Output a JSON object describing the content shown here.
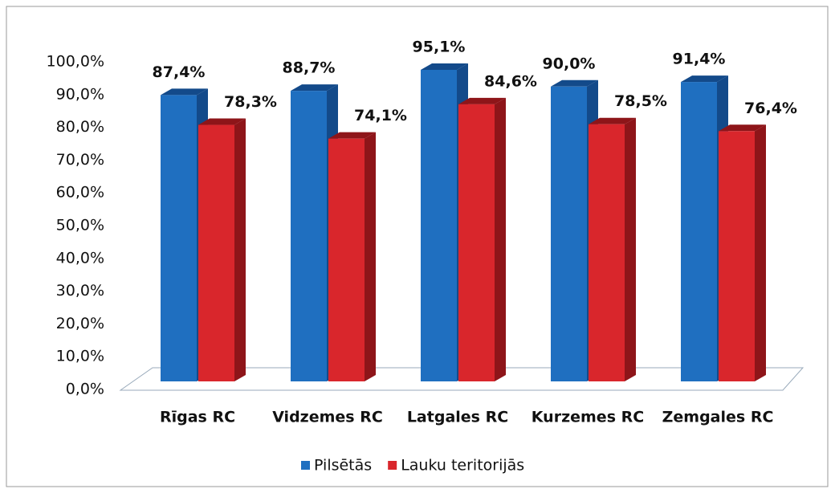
{
  "chart_data": {
    "type": "bar3d",
    "categories": [
      "Rīgas RC",
      "Vidzemes RC",
      "Latgales RC",
      "Kurzemes RC",
      "Zemgales RC"
    ],
    "series": [
      {
        "name": "Pilsētās",
        "color": "#1f6fc0",
        "side": "#134a8a",
        "values": [
          87.4,
          88.7,
          95.1,
          90.0,
          91.4
        ],
        "value_labels": [
          "87,4%",
          "88,7%",
          "95,1%",
          "90,0%",
          "91,4%"
        ]
      },
      {
        "name": "Lauku teritorijās",
        "color": "#d9262c",
        "side": "#8e1519",
        "values": [
          78.3,
          74.1,
          84.6,
          78.5,
          76.4
        ],
        "value_labels": [
          "78,3%",
          "74,1%",
          "84,6%",
          "78,5%",
          "76,4%"
        ]
      }
    ],
    "ylim": [
      0,
      100
    ],
    "yticks": [
      {
        "value": 0,
        "label": "0,0%"
      },
      {
        "value": 10,
        "label": "10,0%"
      },
      {
        "value": 20,
        "label": "20,0%"
      },
      {
        "value": 30,
        "label": "30,0%"
      },
      {
        "value": 40,
        "label": "40,0%"
      },
      {
        "value": 50,
        "label": "50,0%"
      },
      {
        "value": 60,
        "label": "60,0%"
      },
      {
        "value": 70,
        "label": "70,0%"
      },
      {
        "value": 80,
        "label": "80,0%"
      },
      {
        "value": 90,
        "label": "90,0%"
      },
      {
        "value": 100,
        "label": "100,0%"
      }
    ],
    "legend": "bottom"
  }
}
